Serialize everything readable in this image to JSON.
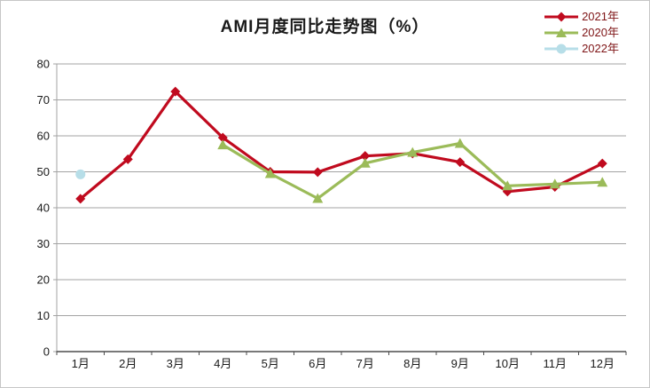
{
  "chart_data": {
    "type": "line",
    "title": "AMI月度同比走势图（%）",
    "xlabel": "",
    "ylabel": "",
    "categories": [
      "1月",
      "2月",
      "3月",
      "4月",
      "5月",
      "6月",
      "7月",
      "8月",
      "9月",
      "10月",
      "11月",
      "12月"
    ],
    "series": [
      {
        "name": "2021年",
        "marker": "diamond",
        "color": "#c00a1e",
        "values": [
          42.5,
          53.5,
          72.3,
          59.5,
          50.0,
          49.9,
          54.4,
          55.1,
          52.7,
          44.5,
          45.8,
          52.3
        ]
      },
      {
        "name": "2020年",
        "marker": "triangle",
        "color": "#9bbb59",
        "values": [
          null,
          null,
          null,
          57.5,
          49.5,
          42.6,
          52.4,
          55.4,
          57.9,
          46.1,
          46.6,
          47.1
        ]
      },
      {
        "name": "2022年",
        "marker": "circle",
        "color": "#b7dee8",
        "values": [
          49.3,
          null,
          null,
          null,
          null,
          null,
          null,
          null,
          null,
          null,
          null,
          null
        ]
      }
    ],
    "ylim": [
      0,
      80
    ],
    "ytick_step": 10,
    "y_ticks": [
      0,
      10,
      20,
      30,
      40,
      50,
      60,
      70,
      80
    ],
    "grid": true,
    "legend_position": "top-right",
    "style": {
      "grid_color": "#a3a3a3",
      "axis_line_color": "#4d4d4d",
      "axis_text_color": "#1a1a1a",
      "legend_text_color": "#7e1416",
      "background": "#ffffff"
    }
  }
}
